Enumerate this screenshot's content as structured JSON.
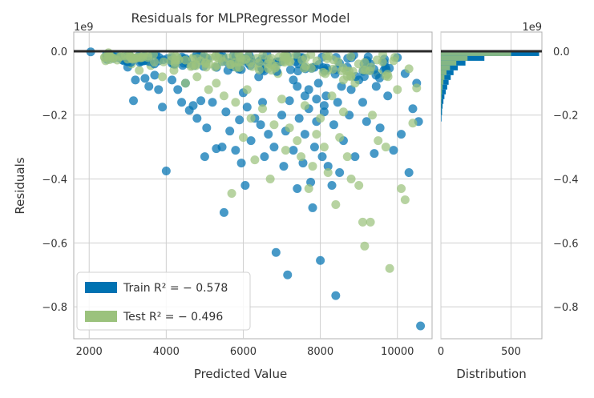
{
  "chart_data": {
    "type": "scatter",
    "title": "Residuals for MLPRegressor Model",
    "xlabel": "Predicted Value",
    "ylabel": "Residuals",
    "y_scale_label": "1e9",
    "hist_scale_label": "1e9",
    "hist_xlabel": "Distribution",
    "xlim": [
      1600,
      10900
    ],
    "ylim": [
      -0.9,
      0.06
    ],
    "xticks": [
      2000,
      4000,
      6000,
      8000,
      10000
    ],
    "yticks": [
      0.0,
      -0.2,
      -0.4,
      -0.6,
      -0.8
    ],
    "hist_xlim": [
      0,
      720
    ],
    "hist_xticks": [
      0,
      500
    ],
    "grid": true,
    "legend_position": "lower-left",
    "zero_line": 0.0,
    "colors": {
      "train": "#0072b2",
      "test": "#9bc27d",
      "zero_line": "#2a2a2a",
      "grid": "#cfcfcf",
      "axes": "#b0b0b0"
    },
    "legend": [
      {
        "key": "train",
        "label": "Train R² = − 0.578"
      },
      {
        "key": "test",
        "label": "Test R² = − 0.496"
      }
    ],
    "series": [
      {
        "name": "Train",
        "key": "train",
        "points": [
          [
            2040,
            -0.002
          ],
          [
            2450,
            -0.01
          ],
          [
            2700,
            -0.015
          ],
          [
            2900,
            -0.03
          ],
          [
            3000,
            -0.05
          ],
          [
            3200,
            -0.09
          ],
          [
            3150,
            -0.155
          ],
          [
            3450,
            -0.085
          ],
          [
            3550,
            -0.11
          ],
          [
            3700,
            -0.075
          ],
          [
            3800,
            -0.12
          ],
          [
            3900,
            -0.175
          ],
          [
            4000,
            -0.375
          ],
          [
            4150,
            -0.09
          ],
          [
            4300,
            -0.12
          ],
          [
            4400,
            -0.16
          ],
          [
            4500,
            -0.1
          ],
          [
            4600,
            -0.185
          ],
          [
            4700,
            -0.17
          ],
          [
            4800,
            -0.21
          ],
          [
            4900,
            -0.155
          ],
          [
            5000,
            -0.33
          ],
          [
            5050,
            -0.24
          ],
          [
            5200,
            -0.16
          ],
          [
            5300,
            -0.305
          ],
          [
            5450,
            -0.3
          ],
          [
            5500,
            -0.505
          ],
          [
            5550,
            -0.19
          ],
          [
            5650,
            -0.25
          ],
          [
            5800,
            -0.31
          ],
          [
            5900,
            -0.215
          ],
          [
            5950,
            -0.35
          ],
          [
            6000,
            -0.13
          ],
          [
            6050,
            -0.42
          ],
          [
            6100,
            -0.175
          ],
          [
            6200,
            -0.28
          ],
          [
            6300,
            -0.21
          ],
          [
            6450,
            -0.23
          ],
          [
            6500,
            -0.16
          ],
          [
            6550,
            -0.33
          ],
          [
            6650,
            -0.26
          ],
          [
            6800,
            -0.3
          ],
          [
            6850,
            -0.63
          ],
          [
            7000,
            -0.2
          ],
          [
            7050,
            -0.36
          ],
          [
            7100,
            -0.25
          ],
          [
            7150,
            -0.7
          ],
          [
            7200,
            -0.155
          ],
          [
            7300,
            -0.31
          ],
          [
            7400,
            -0.43
          ],
          [
            7450,
            -0.21
          ],
          [
            7550,
            -0.35
          ],
          [
            7600,
            -0.26
          ],
          [
            7700,
            -0.18
          ],
          [
            7750,
            -0.41
          ],
          [
            7800,
            -0.49
          ],
          [
            7850,
            -0.3
          ],
          [
            7900,
            -0.22
          ],
          [
            7950,
            -0.1
          ],
          [
            8000,
            -0.655
          ],
          [
            8050,
            -0.33
          ],
          [
            8100,
            -0.19
          ],
          [
            8150,
            -0.14
          ],
          [
            8200,
            -0.36
          ],
          [
            8300,
            -0.42
          ],
          [
            8350,
            -0.23
          ],
          [
            8400,
            -0.765
          ],
          [
            8450,
            -0.16
          ],
          [
            8500,
            -0.38
          ],
          [
            8550,
            -0.11
          ],
          [
            8600,
            -0.28
          ],
          [
            8700,
            -0.05
          ],
          [
            8750,
            -0.2
          ],
          [
            8800,
            -0.12
          ],
          [
            8900,
            -0.33
          ],
          [
            9000,
            -0.09
          ],
          [
            9100,
            -0.16
          ],
          [
            9200,
            -0.22
          ],
          [
            9300,
            -0.04
          ],
          [
            9400,
            -0.32
          ],
          [
            9450,
            -0.11
          ],
          [
            9550,
            -0.24
          ],
          [
            9650,
            -0.06
          ],
          [
            9750,
            -0.14
          ],
          [
            9900,
            -0.31
          ],
          [
            10000,
            -0.02
          ],
          [
            10100,
            -0.26
          ],
          [
            10200,
            -0.07
          ],
          [
            10300,
            -0.38
          ],
          [
            10400,
            -0.18
          ],
          [
            10500,
            -0.1
          ],
          [
            10600,
            -0.86
          ],
          [
            10550,
            -0.22
          ],
          [
            3500,
            -0.03
          ],
          [
            4200,
            -0.04
          ],
          [
            5600,
            -0.06
          ],
          [
            6400,
            -0.08
          ],
          [
            7300,
            -0.09
          ],
          [
            7700,
            -0.12
          ],
          [
            7900,
            -0.15
          ],
          [
            8100,
            -0.17
          ],
          [
            7600,
            -0.14
          ],
          [
            7400,
            -0.11
          ]
        ]
      },
      {
        "name": "Test",
        "key": "test",
        "points": [
          [
            2500,
            -0.005
          ],
          [
            2800,
            -0.02
          ],
          [
            3100,
            -0.04
          ],
          [
            3300,
            -0.06
          ],
          [
            3600,
            -0.045
          ],
          [
            3900,
            -0.08
          ],
          [
            4200,
            -0.06
          ],
          [
            4500,
            -0.1
          ],
          [
            4800,
            -0.08
          ],
          [
            5100,
            -0.12
          ],
          [
            5300,
            -0.1
          ],
          [
            5500,
            -0.14
          ],
          [
            5700,
            -0.445
          ],
          [
            5800,
            -0.16
          ],
          [
            6000,
            -0.27
          ],
          [
            6100,
            -0.12
          ],
          [
            6200,
            -0.21
          ],
          [
            6300,
            -0.34
          ],
          [
            6500,
            -0.18
          ],
          [
            6700,
            -0.4
          ],
          [
            6800,
            -0.23
          ],
          [
            7000,
            -0.15
          ],
          [
            7100,
            -0.31
          ],
          [
            7200,
            -0.24
          ],
          [
            7400,
            -0.28
          ],
          [
            7500,
            -0.33
          ],
          [
            7600,
            -0.17
          ],
          [
            7700,
            -0.43
          ],
          [
            7800,
            -0.36
          ],
          [
            7900,
            -0.26
          ],
          [
            8000,
            -0.21
          ],
          [
            8100,
            -0.3
          ],
          [
            8200,
            -0.38
          ],
          [
            8300,
            -0.14
          ],
          [
            8400,
            -0.48
          ],
          [
            8500,
            -0.27
          ],
          [
            8600,
            -0.19
          ],
          [
            8700,
            -0.33
          ],
          [
            8800,
            -0.4
          ],
          [
            8900,
            -0.1
          ],
          [
            9000,
            -0.42
          ],
          [
            9100,
            -0.535
          ],
          [
            9150,
            -0.61
          ],
          [
            9300,
            -0.535
          ],
          [
            9350,
            -0.2
          ],
          [
            9500,
            -0.28
          ],
          [
            9700,
            -0.3
          ],
          [
            9800,
            -0.68
          ],
          [
            10000,
            -0.12
          ],
          [
            10100,
            -0.43
          ],
          [
            10200,
            -0.465
          ],
          [
            10300,
            -0.055
          ],
          [
            10400,
            -0.225
          ],
          [
            10500,
            -0.115
          ],
          [
            8200,
            -0.06
          ],
          [
            7800,
            -0.05
          ],
          [
            6900,
            -0.07
          ],
          [
            6400,
            -0.05
          ],
          [
            5900,
            -0.03
          ],
          [
            4700,
            -0.02
          ],
          [
            9500,
            -0.07
          ],
          [
            8600,
            -0.09
          ],
          [
            9900,
            -0.03
          ]
        ]
      }
    ],
    "histogram": {
      "orientation": "horizontal",
      "bins": [
        {
          "y0": 0.0,
          "y1": -0.015,
          "train": 700,
          "test": 500
        },
        {
          "y0": -0.015,
          "y1": -0.03,
          "train": 310,
          "test": 190
        },
        {
          "y0": -0.03,
          "y1": -0.045,
          "train": 175,
          "test": 110
        },
        {
          "y0": -0.045,
          "y1": -0.06,
          "train": 120,
          "test": 65
        },
        {
          "y0": -0.06,
          "y1": -0.075,
          "train": 90,
          "test": 40
        },
        {
          "y0": -0.075,
          "y1": -0.09,
          "train": 70,
          "test": 25
        },
        {
          "y0": -0.09,
          "y1": -0.105,
          "train": 55,
          "test": 18
        },
        {
          "y0": -0.105,
          "y1": -0.12,
          "train": 45,
          "test": 12
        },
        {
          "y0": -0.12,
          "y1": -0.135,
          "train": 35,
          "test": 8
        },
        {
          "y0": -0.135,
          "y1": -0.15,
          "train": 25,
          "test": 5
        },
        {
          "y0": -0.15,
          "y1": -0.165,
          "train": 18,
          "test": 3
        },
        {
          "y0": -0.165,
          "y1": -0.18,
          "train": 12,
          "test": 2
        },
        {
          "y0": -0.18,
          "y1": -0.2,
          "train": 8,
          "test": 1
        },
        {
          "y0": -0.2,
          "y1": -0.22,
          "train": 4,
          "test": 0
        }
      ]
    }
  }
}
